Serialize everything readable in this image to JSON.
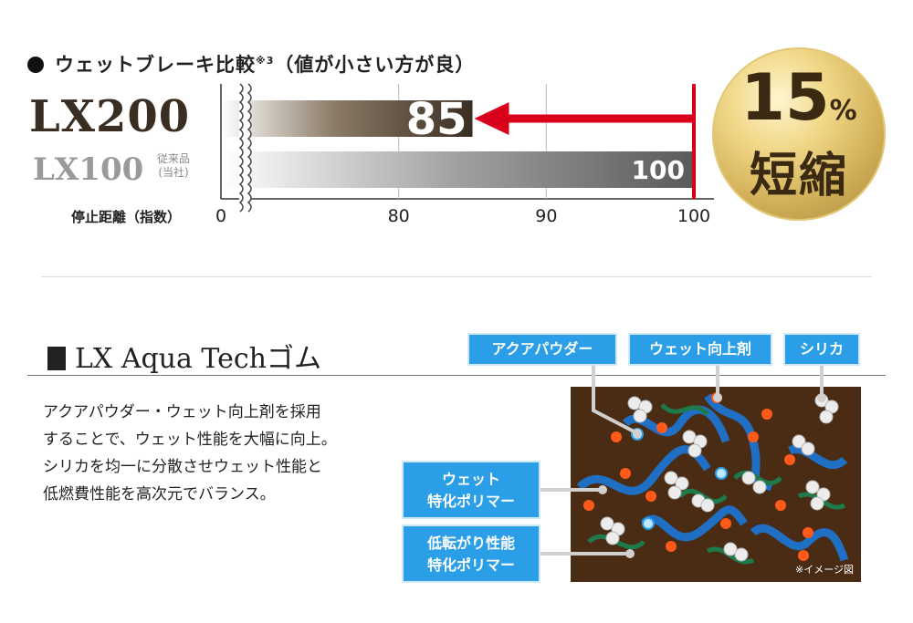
{
  "heading": {
    "title": "ウェットブレーキ比較",
    "note_mark": "※3",
    "subtitle": "（値が小さい方が良）"
  },
  "chart_data": {
    "type": "bar",
    "orientation": "horizontal",
    "categories": [
      "LX200",
      "LX100"
    ],
    "category_notes": [
      "",
      "従来品\n(当社)"
    ],
    "values": [
      85,
      100
    ],
    "xlabel": "停止距離（指数）",
    "x_ticks": [
      0,
      80,
      90,
      100
    ],
    "axis_break": true,
    "xlim": [
      70,
      100
    ],
    "grid": true,
    "series_colors": [
      "#3a2e22",
      "#7a7a7a"
    ],
    "reference_line_color": "#d9001b",
    "arrow_color": "#d9001b"
  },
  "badge": {
    "value": "15",
    "unit": "%",
    "label": "短縮"
  },
  "section": {
    "title_latin": "LX Aqua Tech",
    "title_kana": "ゴム",
    "description": "アクアパウダー・ウェット向上剤を採用\nすることで、ウェット性能を大幅に向上。\nシリカを均一に分散させウェット性能と\n低燃費性能を高次元でバランス。"
  },
  "illustration": {
    "labels": {
      "powder": "アクアパウダー",
      "wet_agent": "ウェット向上剤",
      "silica": "シリカ",
      "wet_polymer": "ウェット\n特化ポリマー",
      "low_roll_polymer": "低転がり性能\n特化ポリマー"
    },
    "note": "※イメージ図",
    "colors": {
      "background": "#4a2c14",
      "tag": "#2a9ee6",
      "polymer_wet": "#1f6fc4",
      "polymer_low": "#1e7a4a",
      "silica": "#e8e8e8",
      "agent": "#ff5a1a"
    }
  }
}
